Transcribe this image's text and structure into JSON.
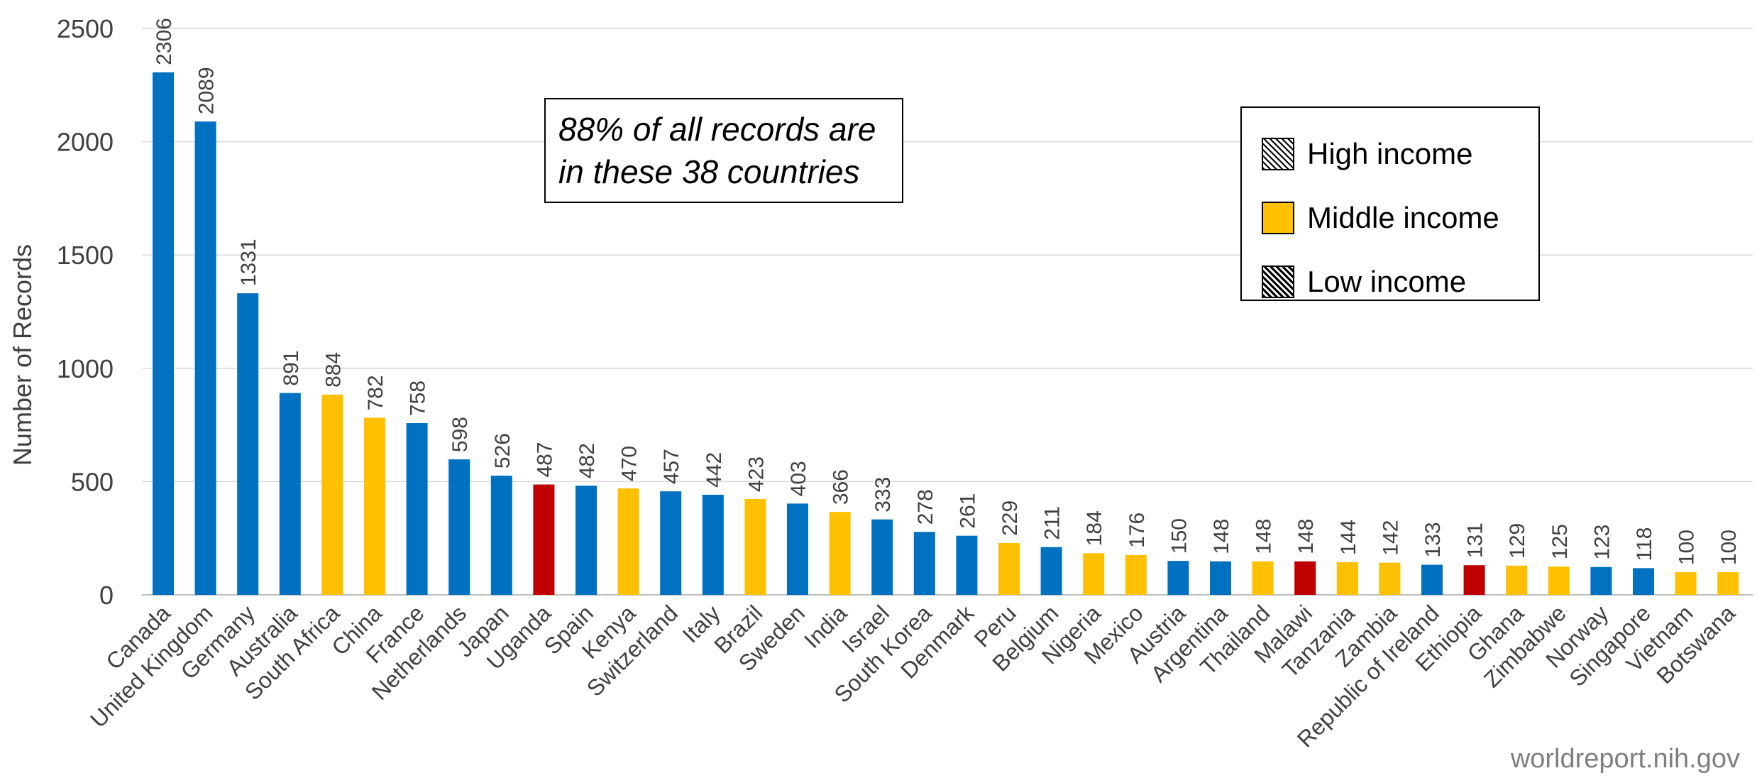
{
  "chart_data": {
    "type": "bar",
    "ylabel": "Number of Records",
    "ylim": [
      0,
      2500
    ],
    "yticks": [
      0,
      500,
      1000,
      1500,
      2000,
      2500
    ],
    "grid": true,
    "categories": [
      "Canada",
      "United Kingdom",
      "Germany",
      "Australia",
      "South Africa",
      "China",
      "France",
      "Netherlands",
      "Japan",
      "Uganda",
      "Spain",
      "Kenya",
      "Switzerland",
      "Italy",
      "Brazil",
      "Sweden",
      "India",
      "Israel",
      "South Korea",
      "Denmark",
      "Peru",
      "Belgium",
      "Nigeria",
      "Mexico",
      "Austria",
      "Argentina",
      "Thailand",
      "Malawi",
      "Tanzania",
      "Zambia",
      "Republic of Ireland",
      "Ethiopia",
      "Ghana",
      "Zimbabwe",
      "Norway",
      "Singapore",
      "Vietnam",
      "Botswana"
    ],
    "values": [
      2306,
      2089,
      1331,
      891,
      884,
      782,
      758,
      598,
      526,
      487,
      482,
      470,
      457,
      442,
      423,
      403,
      366,
      333,
      278,
      261,
      229,
      211,
      184,
      176,
      150,
      148,
      148,
      148,
      144,
      142,
      133,
      131,
      129,
      125,
      123,
      118,
      100,
      100
    ],
    "income": [
      "High income",
      "High income",
      "High income",
      "High income",
      "Middle income",
      "Middle income",
      "High income",
      "High income",
      "High income",
      "Low income",
      "High income",
      "Middle income",
      "High income",
      "High income",
      "Middle income",
      "High income",
      "Middle income",
      "High income",
      "High income",
      "High income",
      "Middle income",
      "High income",
      "Middle income",
      "Middle income",
      "High income",
      "High income",
      "Middle income",
      "Low income",
      "Middle income",
      "Middle income",
      "High income",
      "Low income",
      "Middle income",
      "Middle income",
      "High income",
      "High income",
      "Middle income",
      "Middle income"
    ],
    "legend": {
      "placement": "top-right",
      "items": [
        {
          "label": "High income",
          "color": "#0070c0"
        },
        {
          "label": "Middle income",
          "color": "#ffc000"
        },
        {
          "label": "Low income",
          "color": "#c00000"
        }
      ]
    },
    "annotation": {
      "line1": "88% of all records are",
      "line2": "in these 38 countries"
    }
  },
  "credit": "worldreport.nih.gov",
  "colors": {
    "High income": "#0070c0",
    "Middle income": "#ffc000",
    "Low income": "#c00000",
    "grid": "#d9d9d9",
    "axis": "#bfbfbf"
  }
}
